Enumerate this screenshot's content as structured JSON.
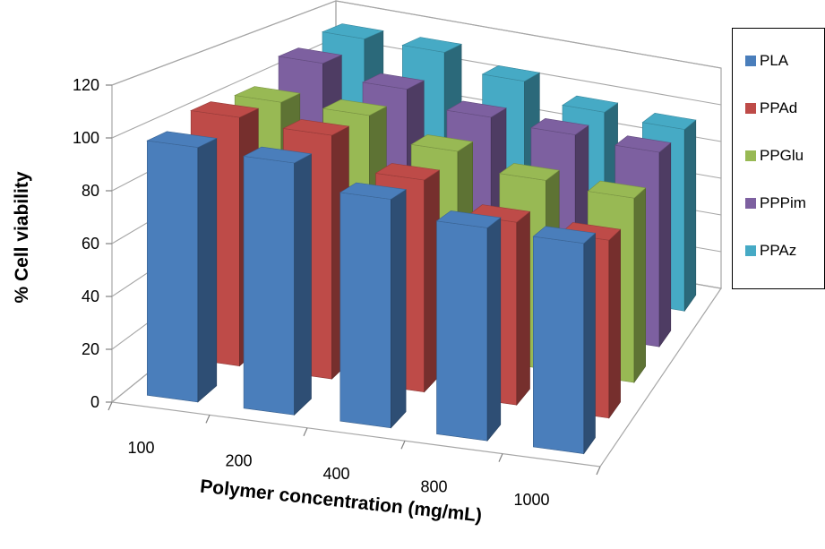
{
  "chart_data": {
    "type": "bar",
    "title": "",
    "xlabel": "Polymer concentration (mg/mL)",
    "ylabel": "% Cell viability",
    "categories": [
      "100",
      "200",
      "400",
      "800",
      "1000"
    ],
    "yticks": [
      "0",
      "20",
      "40",
      "60",
      "80",
      "100",
      "120"
    ],
    "ylim": [
      0,
      120
    ],
    "legend_position": "right",
    "series": [
      {
        "name": "PLA",
        "color": "#4A7EBB",
        "values": [
          98,
          97,
          88,
          82,
          81
        ]
      },
      {
        "name": "PPAd",
        "color": "#BE4B48",
        "values": [
          102,
          100,
          87,
          75,
          73
        ]
      },
      {
        "name": "PPGlu",
        "color": "#98B954",
        "values": [
          100,
          100,
          90,
          83,
          81
        ]
      },
      {
        "name": "PPPim",
        "color": "#7D60A0",
        "values": [
          109,
          103,
          96,
          94,
          92
        ]
      },
      {
        "name": "PPAz",
        "color": "#46AAC5",
        "values": [
          112,
          112,
          104,
          95,
          93
        ]
      }
    ]
  }
}
